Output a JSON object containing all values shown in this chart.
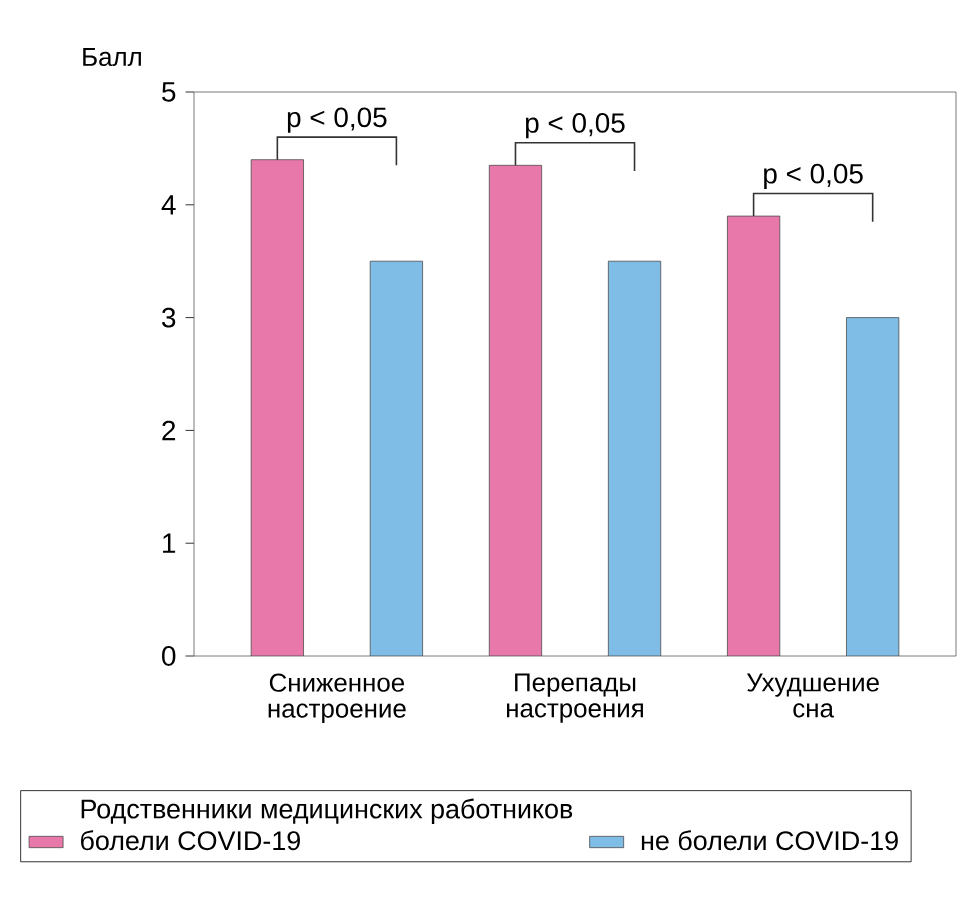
{
  "chart_data": {
    "type": "bar",
    "ylabel": "Балл",
    "legend_title": "Родственники медицинских работников",
    "categories": [
      "Сниженное настроение",
      "Перепады настроения",
      "Ухудшение сна"
    ],
    "series": [
      {
        "name": "болели COVID-19",
        "color": "#e878aa",
        "values": [
          4.4,
          4.35,
          3.9
        ]
      },
      {
        "name": "не болели COVID-19",
        "color": "#80bde6",
        "values": [
          3.5,
          3.5,
          3.0
        ]
      }
    ],
    "ylim": [
      0,
      5
    ],
    "yticks": [
      0,
      1,
      2,
      3,
      4,
      5
    ],
    "grid": false,
    "legend": "bottom",
    "annotations": [
      "p < 0,05",
      "p < 0,05",
      "p < 0,05"
    ]
  }
}
